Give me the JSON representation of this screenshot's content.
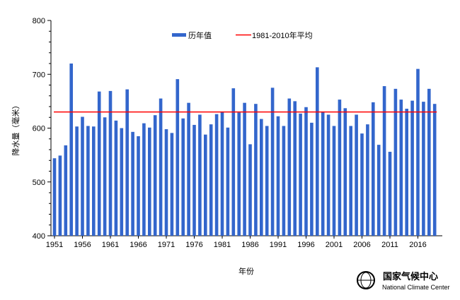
{
  "chart_data": {
    "type": "bar",
    "title": "",
    "xlabel": "年份",
    "ylabel": "降水量（毫米）",
    "ylim": [
      400,
      800
    ],
    "yticks": [
      400,
      500,
      600,
      700,
      800
    ],
    "xtick_labels": [
      "1951",
      "1956",
      "1961",
      "1966",
      "1971",
      "1976",
      "1981",
      "1986",
      "1991",
      "1996",
      "2001",
      "2006",
      "2011",
      "2016"
    ],
    "grid": false,
    "legend_placement": "top-center",
    "x_start": 1951,
    "series": [
      {
        "name": "历年值",
        "color": "#3366cc",
        "values": [
          544,
          549,
          568,
          720,
          603,
          621,
          604,
          603,
          668,
          620,
          669,
          614,
          600,
          672,
          593,
          585,
          609,
          601,
          624,
          655,
          598,
          591,
          691,
          618,
          647,
          606,
          625,
          588,
          607,
          626,
          630,
          601,
          674,
          629,
          647,
          570,
          645,
          617,
          604,
          675,
          622,
          604,
          655,
          650,
          627,
          639,
          610,
          713,
          630,
          625,
          604,
          653,
          637,
          604,
          625,
          590,
          607,
          648,
          569,
          678,
          556,
          673,
          653,
          636,
          651,
          710,
          649,
          673,
          645
        ]
      }
    ],
    "reference_lines": [
      {
        "name": "1981-2010年平均",
        "value": 630,
        "color": "#ff0000"
      }
    ]
  },
  "logo": {
    "name_cn": "国家气候中心",
    "name_en": "National Climate Center"
  }
}
